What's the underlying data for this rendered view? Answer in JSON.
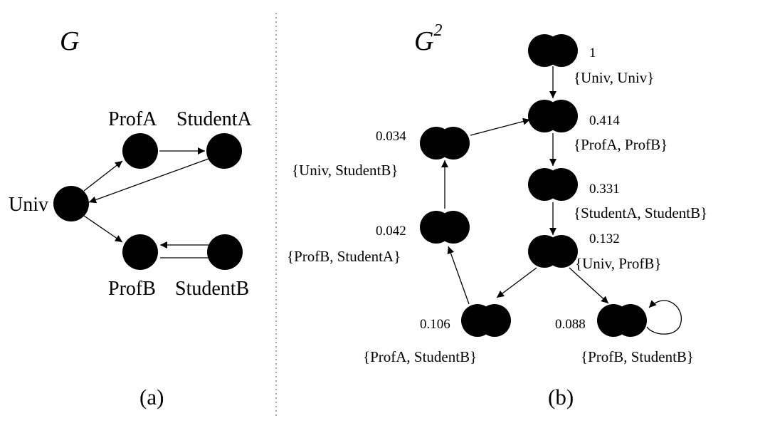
{
  "left_panel": {
    "title": "G",
    "caption": "(a)",
    "nodes": [
      {
        "id": "univ",
        "label": "Univ"
      },
      {
        "id": "profA",
        "label": "ProfA"
      },
      {
        "id": "studentA",
        "label": "StudentA"
      },
      {
        "id": "profB",
        "label": "ProfB"
      },
      {
        "id": "studentB",
        "label": "StudentB"
      }
    ],
    "edges": [
      {
        "from": "univ",
        "to": "profA"
      },
      {
        "from": "univ",
        "to": "profB"
      },
      {
        "from": "profA",
        "to": "studentA"
      },
      {
        "from": "studentA",
        "to": "univ"
      },
      {
        "from": "studentB",
        "to": "profB"
      }
    ]
  },
  "right_panel": {
    "title": "G",
    "title_superscript": "2",
    "caption": "(b)",
    "nodes": [
      {
        "id": "n1",
        "pair": "{Univ, Univ}",
        "score": "1"
      },
      {
        "id": "n2",
        "pair": "{ProfA, ProfB}",
        "score": "0.414"
      },
      {
        "id": "n3",
        "pair": "{StudentA, StudentB}",
        "score": "0.331"
      },
      {
        "id": "n4",
        "pair": "{Univ, ProfB}",
        "score": "0.132"
      },
      {
        "id": "n5",
        "pair": "{ProfA, StudentB}",
        "score": "0.106"
      },
      {
        "id": "n6",
        "pair": "{ProfB, StudentB}",
        "score": "0.088"
      },
      {
        "id": "n7",
        "pair": "{ProfB, StudentA}",
        "score": "0.042"
      },
      {
        "id": "n8",
        "pair": "{Univ, StudentB}",
        "score": "0.034"
      }
    ],
    "edges": [
      {
        "from": "n1",
        "to": "n2"
      },
      {
        "from": "n2",
        "to": "n3"
      },
      {
        "from": "n3",
        "to": "n4"
      },
      {
        "from": "n4",
        "to": "n5"
      },
      {
        "from": "n4",
        "to": "n6"
      },
      {
        "from": "n6",
        "to": "n6"
      },
      {
        "from": "n5",
        "to": "n7"
      },
      {
        "from": "n7",
        "to": "n8"
      },
      {
        "from": "n8",
        "to": "n2"
      }
    ]
  }
}
